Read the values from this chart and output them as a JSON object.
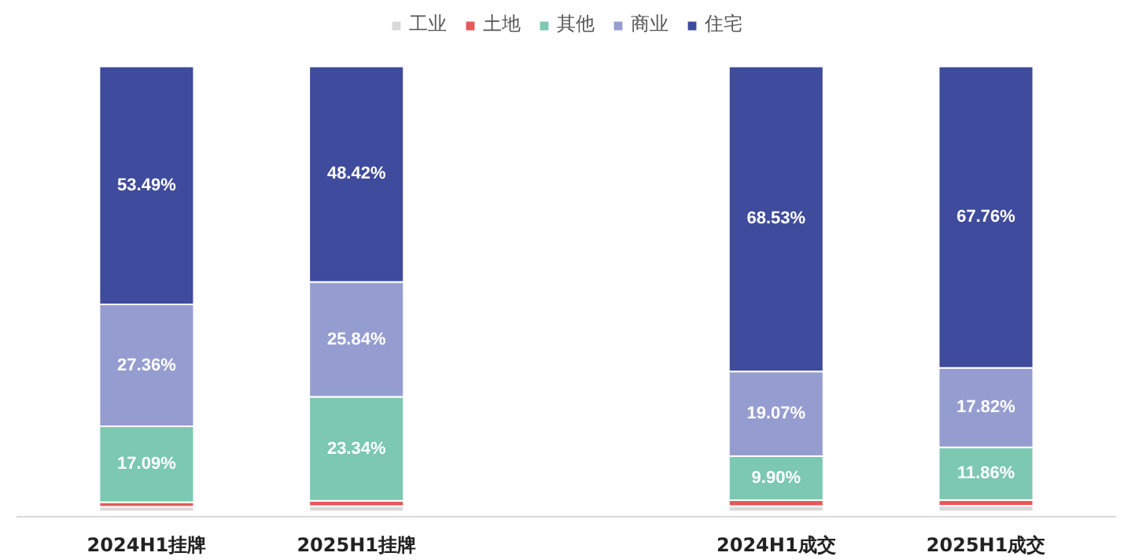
{
  "chart_data": {
    "type": "bar",
    "stacked": true,
    "categories": [
      "2024H1挂牌",
      "2025H1挂牌",
      null,
      "2024H1成交",
      "2025H1成交"
    ],
    "series": [
      {
        "name": "工业",
        "color": "#d9d9d9",
        "values": [
          1.06,
          1.2,
          null,
          1.2,
          1.26
        ],
        "value_labels": [
          null,
          null,
          null,
          null,
          null
        ]
      },
      {
        "name": "土地",
        "color": "#e8575a",
        "values": [
          1.0,
          1.2,
          null,
          1.3,
          1.3
        ],
        "value_labels": [
          null,
          null,
          null,
          null,
          null
        ]
      },
      {
        "name": "其他",
        "color": "#7cc8b0",
        "values": [
          17.09,
          23.34,
          null,
          9.9,
          11.86
        ],
        "value_labels": [
          "17.09%",
          "23.34%",
          null,
          "9.90%",
          "11.86%"
        ]
      },
      {
        "name": "商业",
        "color": "#959dd0",
        "values": [
          27.36,
          25.84,
          null,
          19.07,
          17.82
        ],
        "value_labels": [
          "27.36%",
          "25.84%",
          null,
          "19.07%",
          "17.82%"
        ]
      },
      {
        "name": "住宅",
        "color": "#3f4b9c",
        "values": [
          53.49,
          48.42,
          null,
          68.53,
          67.76
        ],
        "value_labels": [
          "53.49%",
          "48.42%",
          null,
          "68.53%",
          "67.76%"
        ]
      }
    ],
    "legend": "top"
  }
}
